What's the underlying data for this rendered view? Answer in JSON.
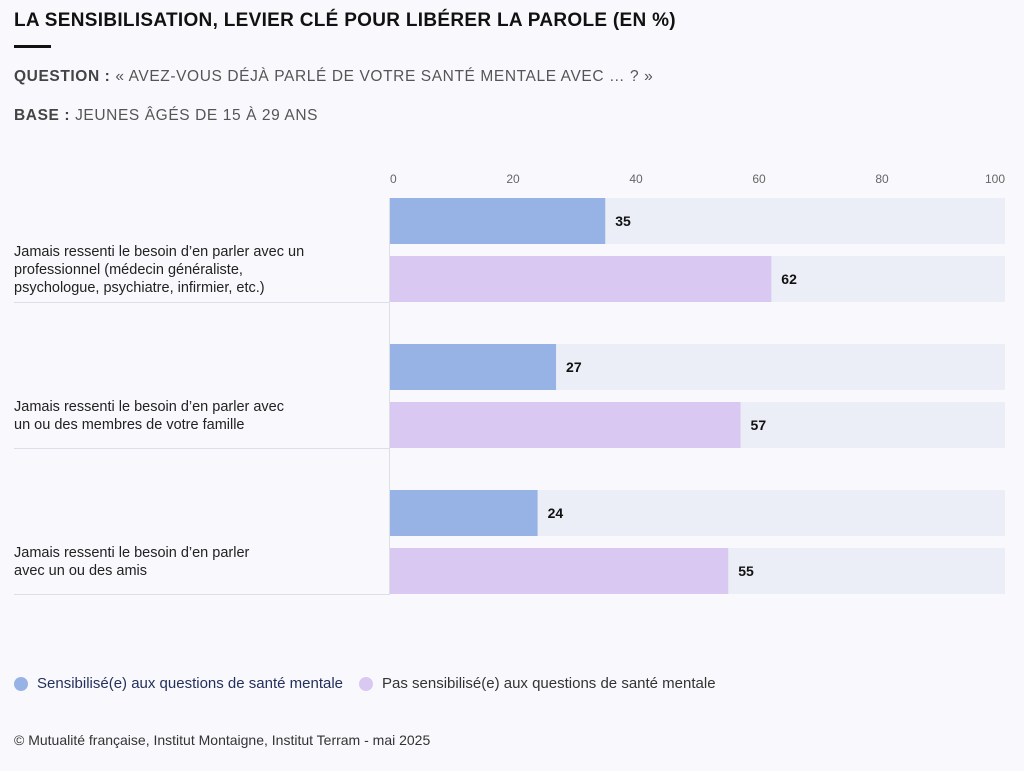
{
  "header": {
    "title": "LA SENSIBILISATION, LEVIER CLÉ POUR LIBÉRER LA PAROLE (EN %)",
    "question_label": "QUESTION :",
    "question_text": "« AVEZ-VOUS DÉJÀ PARLÉ DE VOTRE SANTÉ MENTALE AVEC … ? »",
    "base_label": "BASE :",
    "base_text": "JEUNES ÂGÉS DE 15 À 29 ANS"
  },
  "chart_data": {
    "type": "bar",
    "orientation": "horizontal",
    "categories": [
      [
        "Jamais ressenti le besoin d’en parler avec un",
        "professionnel (médecin généraliste,",
        "psychologue, psychiatre, infirmier, etc.)"
      ],
      [
        "Jamais ressenti le besoin d’en parler avec",
        "un ou des membres de votre famille"
      ],
      [
        "Jamais ressenti le besoin d’en parler",
        "avec un ou des amis"
      ]
    ],
    "series": [
      {
        "name": "Sensibilisé(e) aux questions de santé mentale",
        "values": [
          35,
          27,
          24
        ],
        "color": "#97b3e5"
      },
      {
        "name": "Pas sensibilisé(e) aux questions de santé mentale",
        "values": [
          62,
          57,
          55
        ],
        "color": "#d9c8f2"
      }
    ],
    "xlim": [
      0,
      100
    ],
    "xticks": [
      "0",
      "20",
      "40",
      "60",
      "80",
      "100"
    ],
    "track_color": "#eceef7",
    "legend_position": "bottom-left"
  },
  "legend": {
    "item1": "Sensibilisé(e) aux questions de santé mentale",
    "item2": "Pas sensibilisé(e) aux questions de santé mentale"
  },
  "footer": {
    "source": "© Mutualité française, Institut Montaigne, Institut Terram - mai 2025"
  }
}
